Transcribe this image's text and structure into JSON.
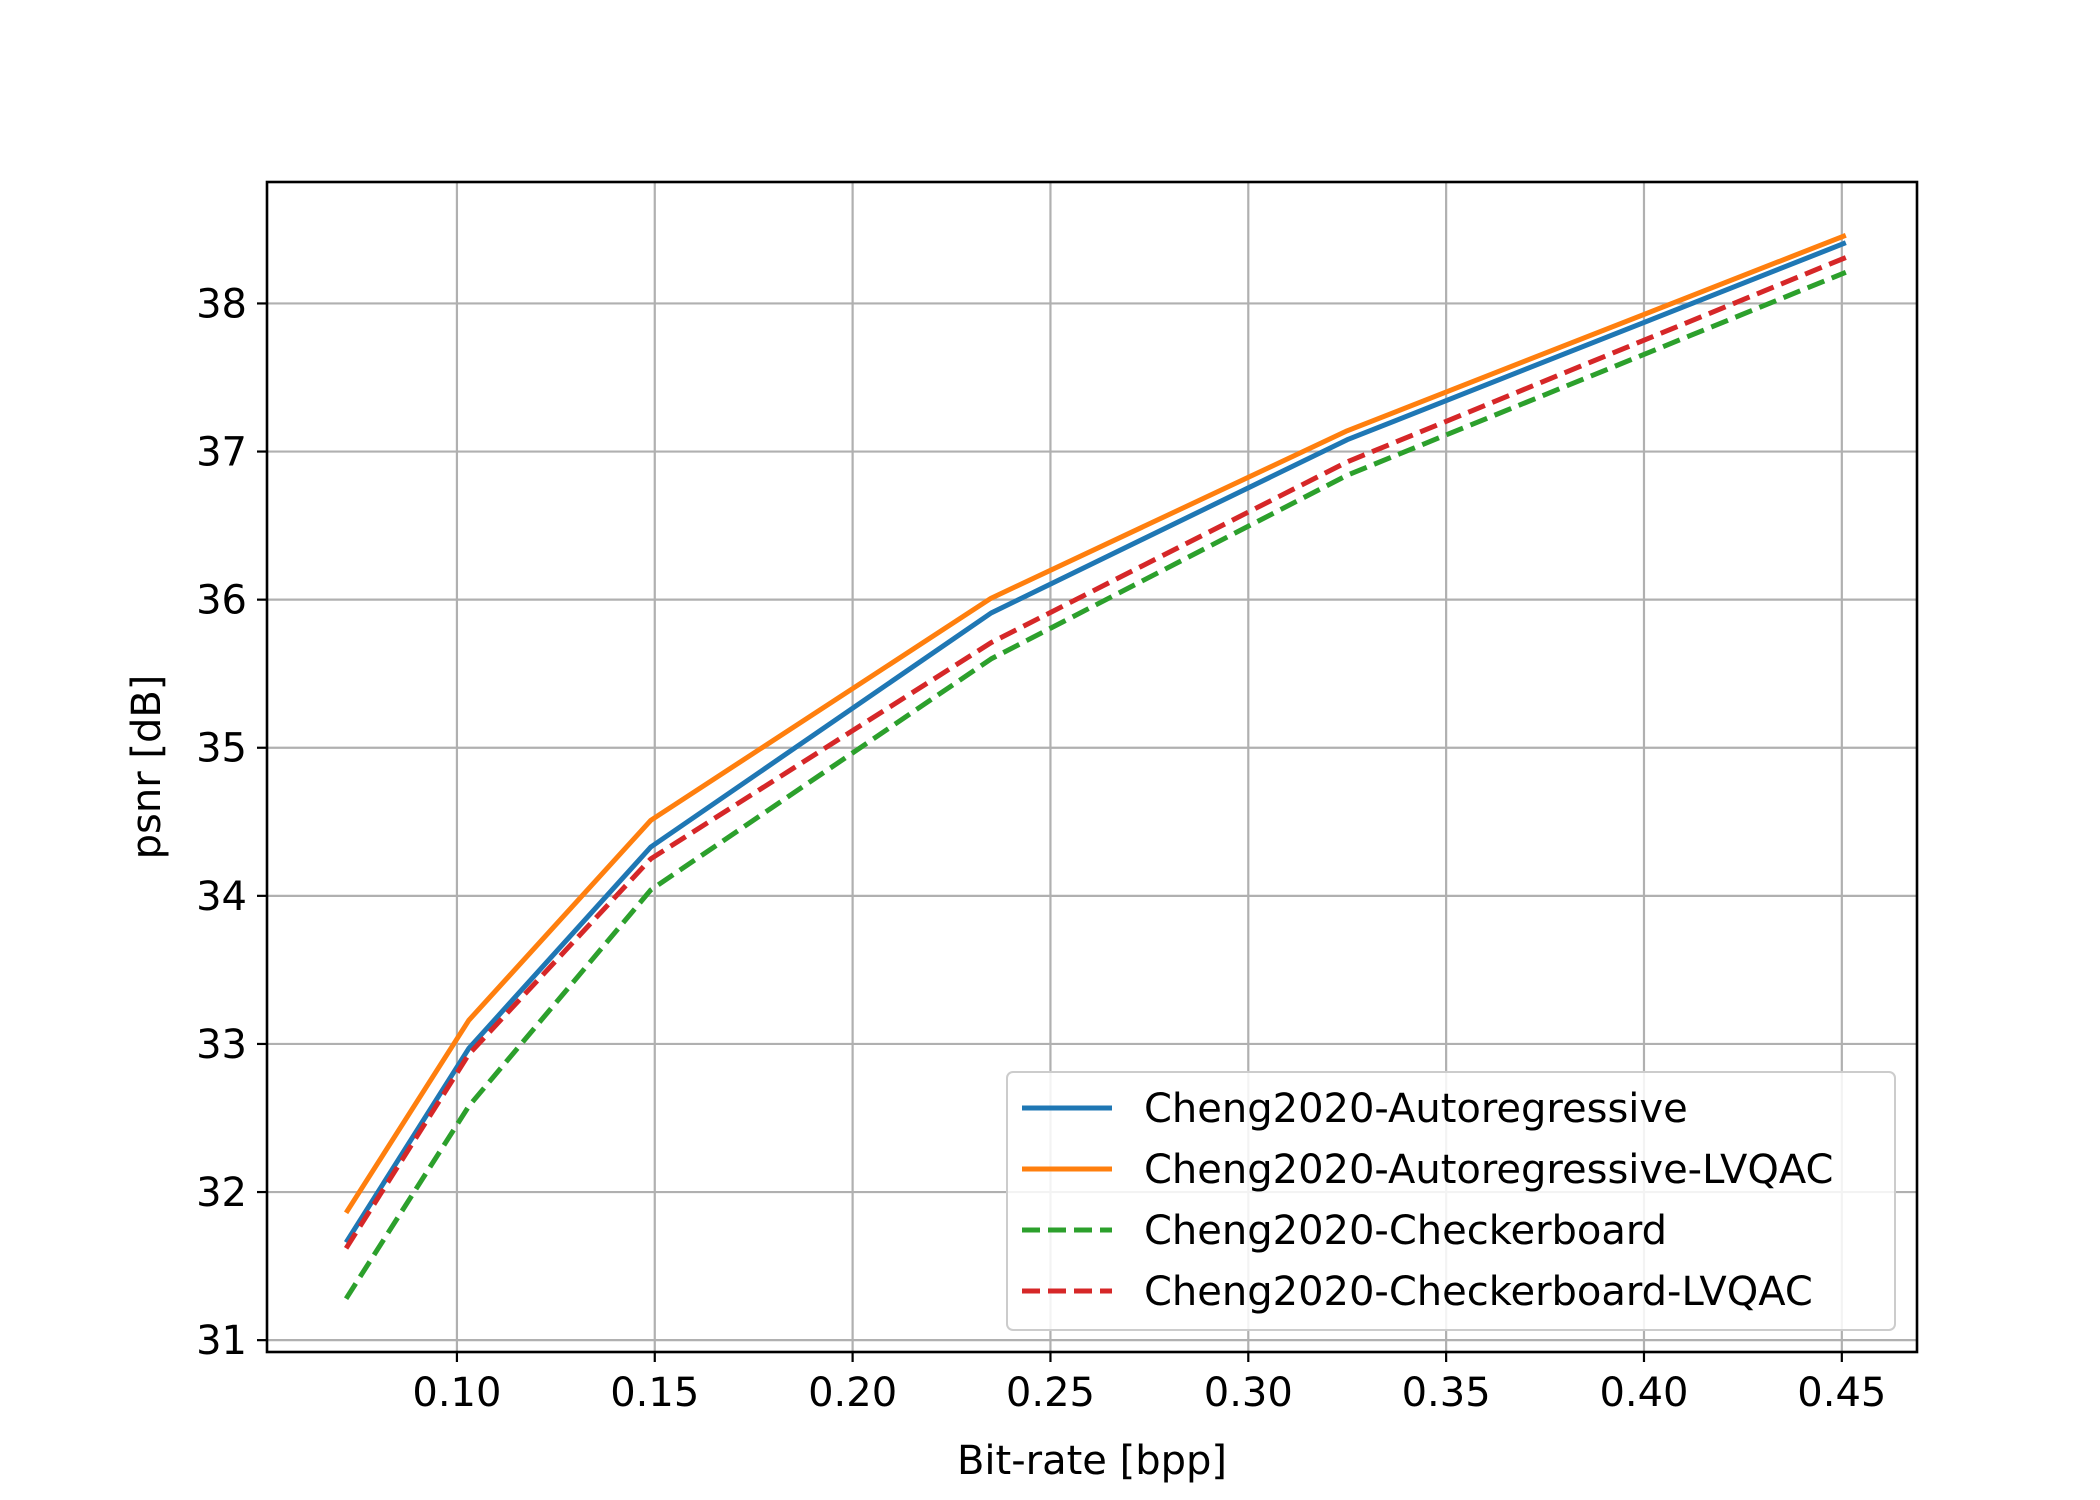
{
  "chart_data": {
    "type": "line",
    "title": "",
    "xlabel": "Bit-rate [bpp]",
    "ylabel": "psnr [dB]",
    "xlim": [
      0.052,
      0.469
    ],
    "ylim": [
      30.92,
      38.82
    ],
    "xticks": [
      0.1,
      0.15,
      0.2,
      0.25,
      0.3,
      0.35,
      0.4,
      0.45
    ],
    "xtick_labels": [
      "0.10",
      "0.15",
      "0.20",
      "0.25",
      "0.30",
      "0.35",
      "0.40",
      "0.45"
    ],
    "yticks": [
      31,
      32,
      33,
      34,
      35,
      36,
      37,
      38
    ],
    "ytick_labels": [
      "31",
      "32",
      "33",
      "34",
      "35",
      "36",
      "37",
      "38"
    ],
    "grid": true,
    "legend_position": "lower-right",
    "series": [
      {
        "name": "Cheng2020-Autoregressive",
        "color": "#1f77b4",
        "style": "solid",
        "x": [
          0.072,
          0.103,
          0.149,
          0.235,
          0.325,
          0.451
        ],
        "y": [
          31.66,
          32.97,
          34.33,
          35.91,
          37.08,
          38.41
        ]
      },
      {
        "name": "Cheng2020-Autoregressive-LVQAC",
        "color": "#ff7f0e",
        "style": "solid",
        "x": [
          0.072,
          0.103,
          0.149,
          0.235,
          0.325,
          0.451
        ],
        "y": [
          31.86,
          33.16,
          34.51,
          36.01,
          37.14,
          38.46
        ]
      },
      {
        "name": "Cheng2020-Checkerboard",
        "color": "#2ca02c",
        "style": "dashed",
        "x": [
          0.072,
          0.103,
          0.149,
          0.235,
          0.325,
          0.451
        ],
        "y": [
          31.28,
          32.58,
          34.04,
          35.6,
          36.84,
          38.21
        ]
      },
      {
        "name": "Cheng2020-Checkerboard-LVQAC",
        "color": "#d62728",
        "style": "dashed",
        "x": [
          0.072,
          0.103,
          0.149,
          0.235,
          0.325,
          0.451
        ],
        "y": [
          31.62,
          32.93,
          34.25,
          35.71,
          36.93,
          38.31
        ]
      }
    ]
  }
}
